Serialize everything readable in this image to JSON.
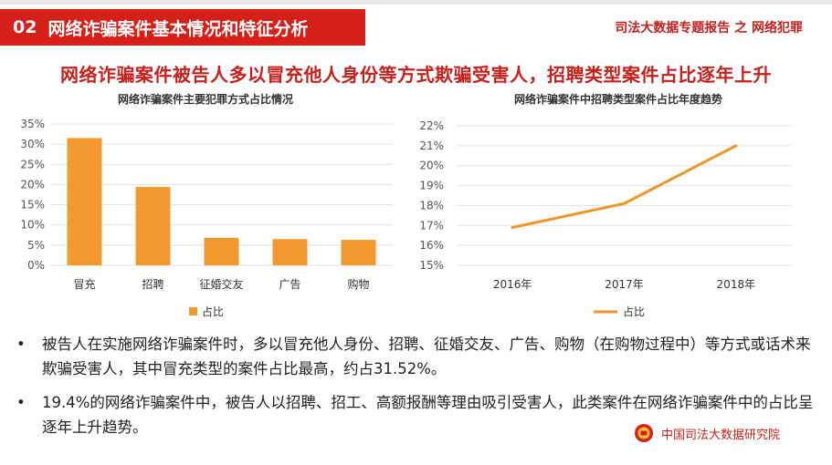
{
  "header": {
    "section_number": "02",
    "section_title": "网络诈骗案件基本情况和特征分析",
    "report_tag": "司法大数据专题报告 之 网络犯罪"
  },
  "headline": "网络诈骗案件被告人多以冒充他人身份等方式欺骗受害人，招聘类型案件占比逐年上升",
  "chart_data": [
    {
      "type": "bar",
      "title": "网络诈骗案件主要犯罪方式占比情况",
      "categories": [
        "冒充",
        "招聘",
        "征婚交友",
        "广告",
        "购物"
      ],
      "series": [
        {
          "name": "占比",
          "values": [
            31.52,
            19.4,
            6.8,
            6.5,
            6.3
          ]
        }
      ],
      "unit": "%",
      "ylim": [
        0,
        35
      ],
      "yticks": [
        "0%",
        "5%",
        "10%",
        "15%",
        "20%",
        "25%",
        "30%",
        "35%"
      ],
      "grid": true,
      "legend": "bottom",
      "color": "#f29a2e"
    },
    {
      "type": "line",
      "title": "网络诈骗案件中招聘类型案件占比年度趋势",
      "categories": [
        "2016年",
        "2017年",
        "2018年"
      ],
      "series": [
        {
          "name": "占比",
          "values": [
            16.9,
            18.1,
            21.0
          ]
        }
      ],
      "unit": "%",
      "ylim": [
        15,
        22
      ],
      "yticks": [
        "15%",
        "16%",
        "17%",
        "18%",
        "19%",
        "20%",
        "21%",
        "22%"
      ],
      "grid": true,
      "legend": "bottom",
      "color": "#f0952a"
    }
  ],
  "bullets": [
    {
      "marker": "•",
      "text": "被告人在实施网络诈骗案件时，多以冒充他人身份、招聘、征婚交友、广告、购物（在购物过程中）等方式或话术来欺骗受害人，其中冒充类型的案件占比最高，约占31.52%。"
    },
    {
      "marker": "•",
      "text": "19.4%的网络诈骗案件中，被告人以招聘、招工、高额报酬等理由吸引受害人，此类案件在网络诈骗案件中的占比呈逐年上升趋势。"
    }
  ],
  "footer": {
    "org_name": "中国司法大数据研究院"
  },
  "colors": {
    "brand_red": "#d71f1a",
    "bar_orange": "#f29a2e",
    "line_orange": "#f0952a"
  }
}
